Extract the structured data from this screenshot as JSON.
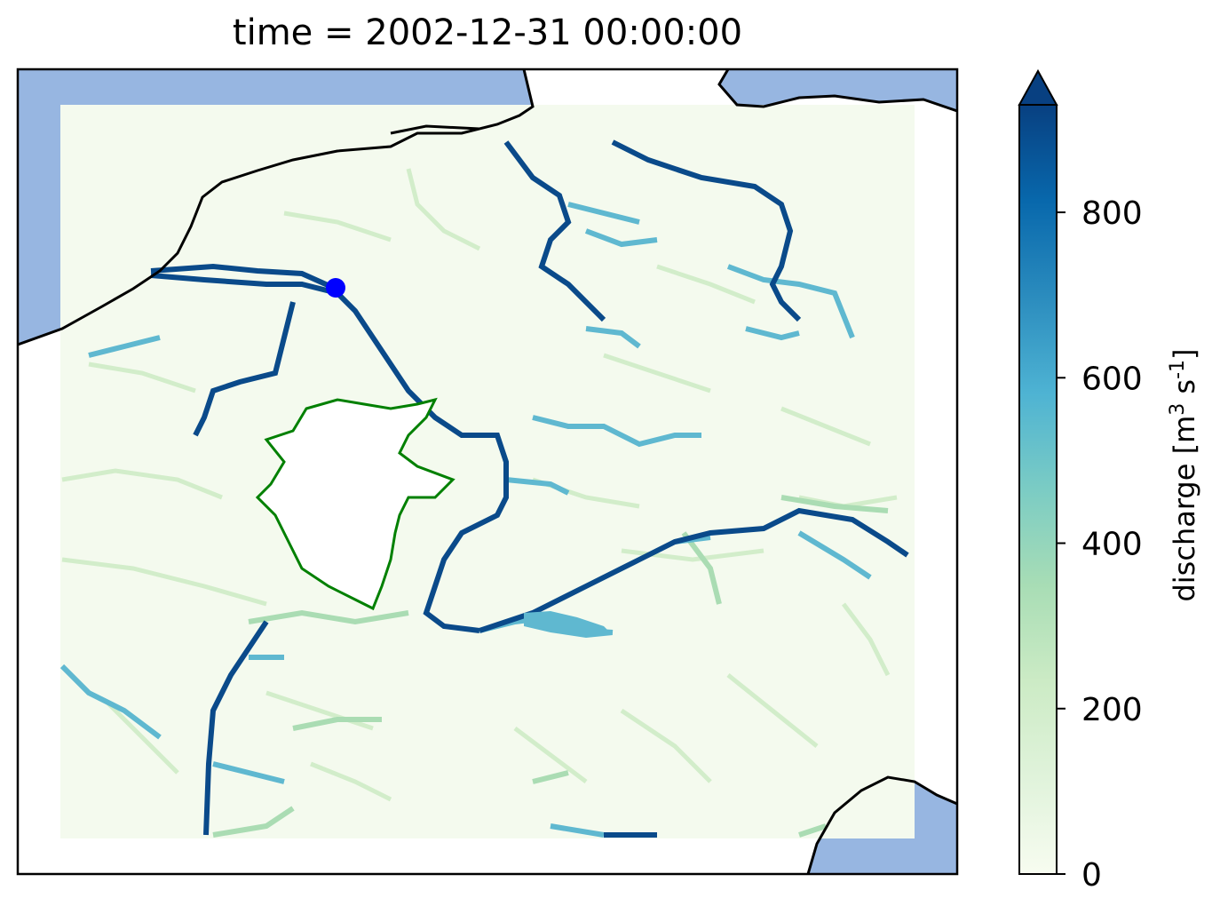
{
  "title": "time = 2002-12-31 00:00:00",
  "colorbar": {
    "label_main": "discharge [m",
    "label_sup1": "3",
    "label_mid": " s",
    "label_sup2": "-1",
    "label_end": "]",
    "ticks": [
      {
        "value": 0,
        "label": "0"
      },
      {
        "value": 200,
        "label": "200"
      },
      {
        "value": 400,
        "label": "400"
      },
      {
        "value": 600,
        "label": "600"
      },
      {
        "value": 800,
        "label": "800"
      }
    ],
    "range": [
      0,
      930
    ],
    "extend": "max",
    "colormap": "GnBu",
    "colors": [
      "#f7fcf0",
      "#e0f3db",
      "#ccebc5",
      "#a8ddb5",
      "#7bccc4",
      "#4eb3d3",
      "#2b8cbe",
      "#0868ac",
      "#084081"
    ]
  },
  "map": {
    "colors": {
      "ocean": "#97b6e1",
      "background_field": "#f4faee",
      "coastline": "#000000",
      "catchment_outline": "#008000",
      "gauge_point": "#0000ff"
    },
    "layers": [
      "ocean",
      "coastline",
      "discharge-grid",
      "catchment-outline",
      "gauge-point"
    ]
  }
}
